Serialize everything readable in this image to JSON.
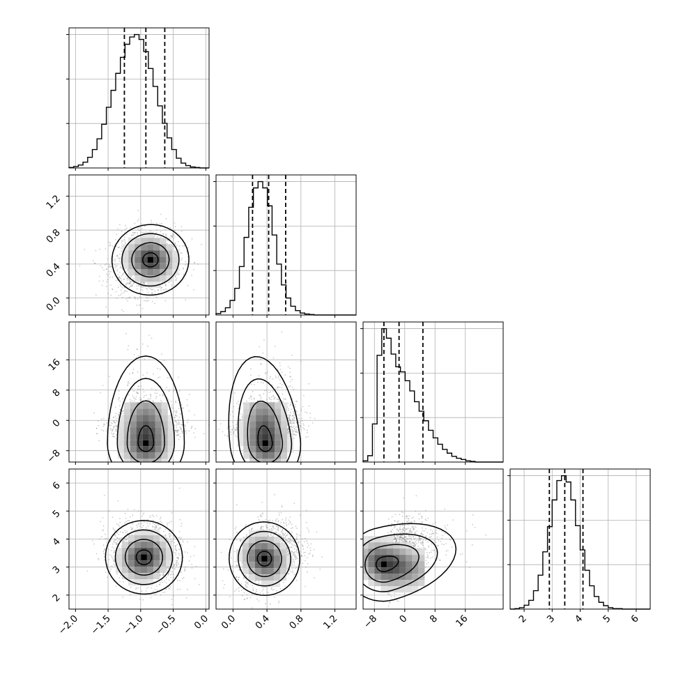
{
  "chart_data": {
    "type": "corner",
    "title": "",
    "grid": true,
    "quantile_line_style": "dashed",
    "colors": {
      "line": "#000000",
      "grid": "#b0b0b0",
      "scatter": "#8c8c8c",
      "density_dark": "#000000",
      "density_light": "#ffffff"
    },
    "parameters": [
      {
        "label": "",
        "range": [
          -2.1,
          0.05
        ],
        "ticks": [
          -2.0,
          -1.5,
          -1.0,
          -0.5,
          0.0
        ],
        "tick_labels": [
          "−2.0",
          "−1.5",
          "−1.0",
          "−0.5",
          "0.0"
        ],
        "quantiles": [
          -1.25,
          -0.92,
          -0.63
        ],
        "median": -0.92,
        "sd": 0.27,
        "skew": 0,
        "hist_counts": [
          1,
          3,
          6,
          12,
          22,
          38,
          60,
          90,
          125,
          160,
          195,
          228,
          255,
          270,
          275,
          265,
          240,
          205,
          168,
          128,
          92,
          62,
          38,
          20,
          10,
          5,
          2,
          1,
          0,
          0
        ]
      },
      {
        "label": "",
        "range": [
          -0.2,
          1.45
        ],
        "ticks": [
          0.0,
          0.4,
          0.8,
          1.2
        ],
        "tick_labels": [
          "0.0",
          "0.4",
          "0.8",
          "1.2"
        ],
        "quantiles": [
          0.23,
          0.42,
          0.62
        ],
        "median": 0.42,
        "sd": 0.19,
        "skew": 0,
        "hist_counts": [
          3,
          7,
          15,
          30,
          55,
          100,
          160,
          222,
          262,
          275,
          262,
          225,
          165,
          105,
          62,
          35,
          18,
          9,
          4,
          2,
          1,
          0,
          0,
          0,
          0,
          0,
          0,
          0,
          0,
          0
        ]
      },
      {
        "label": "",
        "range": [
          -11,
          26
        ],
        "ticks": [
          -8,
          0,
          8,
          16
        ],
        "tick_labels": [
          "−8",
          "0",
          "8",
          "16"
        ],
        "quantiles": [
          -5.5,
          -1.5,
          4.8
        ],
        "median": -1.5,
        "sd": 4.5,
        "skew": 1,
        "hist_counts": [
          2,
          10,
          60,
          168,
          210,
          195,
          170,
          150,
          142,
          128,
          112,
          95,
          80,
          65,
          50,
          38,
          28,
          20,
          14,
          9,
          6,
          4,
          2,
          1,
          0,
          0,
          0,
          0,
          0,
          0
        ]
      },
      {
        "label": "",
        "range": [
          1.5,
          6.5
        ],
        "ticks": [
          2,
          3,
          4,
          5,
          6
        ],
        "tick_labels": [
          "2",
          "3",
          "4",
          "5",
          "6"
        ],
        "quantiles": [
          2.9,
          3.45,
          4.1
        ],
        "median": 3.45,
        "sd": 0.6,
        "skew": 0,
        "hist_counts": [
          0,
          1,
          3,
          8,
          18,
          38,
          70,
          118,
          170,
          225,
          265,
          275,
          262,
          225,
          172,
          122,
          80,
          48,
          26,
          14,
          7,
          3,
          1,
          1,
          0,
          0,
          0,
          0,
          0,
          0
        ]
      }
    ],
    "pair_modes": {
      "1_0": [
        -0.85,
        0.45
      ],
      "2_0": [
        -0.92,
        -6.0
      ],
      "2_1": [
        0.38,
        -6.0
      ],
      "3_0": [
        -0.95,
        3.35
      ],
      "3_1": [
        0.37,
        3.3
      ],
      "3_2": [
        -5.5,
        3.1
      ]
    },
    "pair_correlations": {
      "1_0": 0.1,
      "2_0": 0.0,
      "2_1": 0.2,
      "3_0": -0.15,
      "3_1": 0.25,
      "3_2": 0.45
    }
  }
}
